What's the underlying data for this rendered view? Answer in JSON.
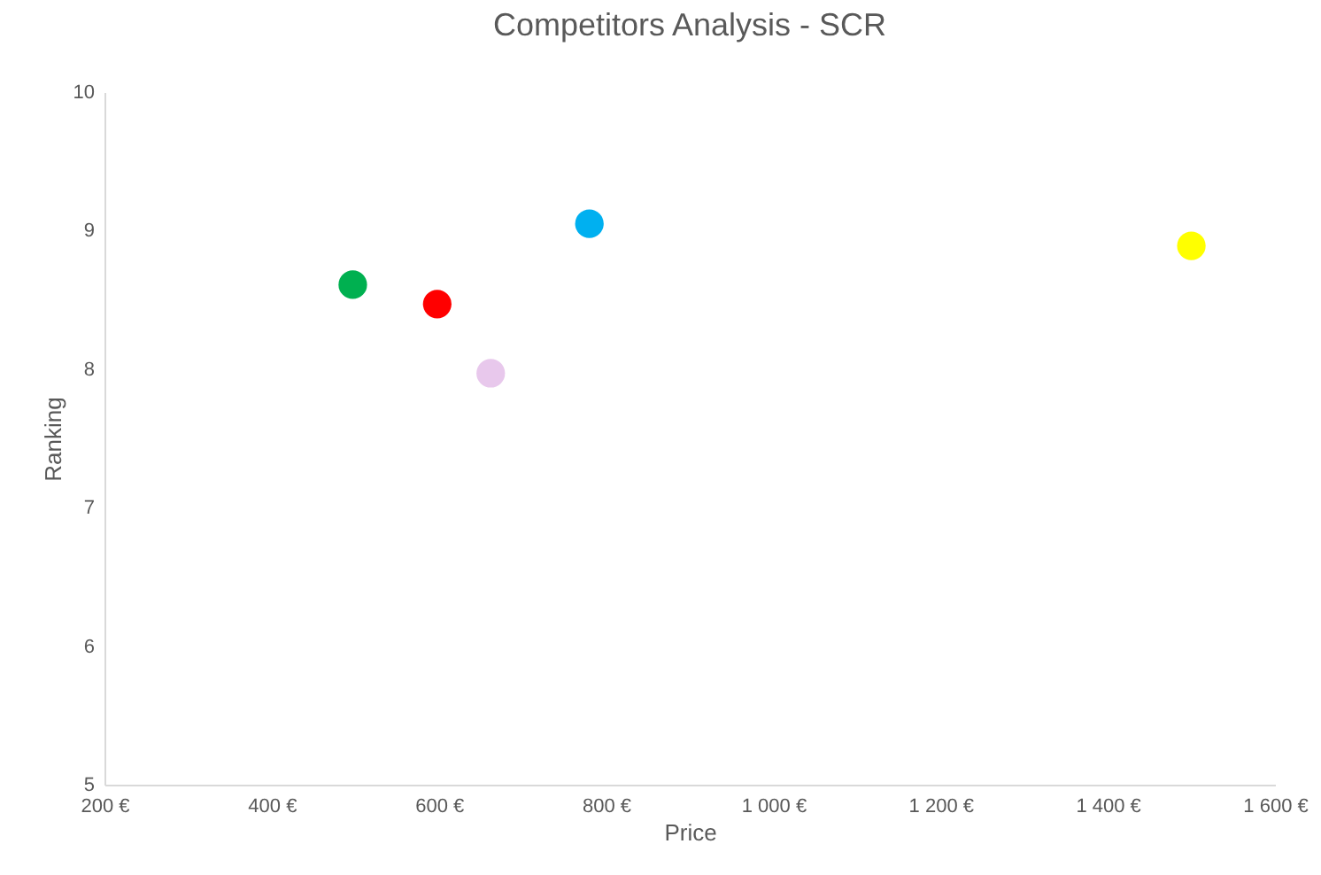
{
  "chart_data": {
    "type": "scatter",
    "title": "Competitors Analysis - SCR",
    "xlabel": "Price",
    "ylabel": "Ranking",
    "x": [
      497,
      598,
      662,
      780,
      1500
    ],
    "values": [
      8.61,
      8.47,
      7.97,
      9.05,
      8.89
    ],
    "colors": [
      "#00b050",
      "#ff0000",
      "#e8c8ec",
      "#00b0f0",
      "#ffff00"
    ],
    "marker": "circle",
    "xlim": [
      200,
      1600
    ],
    "xticks": [
      {
        "value": 200,
        "label": "200 €"
      },
      {
        "value": 400,
        "label": "400 €"
      },
      {
        "value": 600,
        "label": "600 €"
      },
      {
        "value": 800,
        "label": "800 €"
      },
      {
        "value": 1000,
        "label": "1 000 €"
      },
      {
        "value": 1200,
        "label": "1 200 €"
      },
      {
        "value": 1400,
        "label": "1 400 €"
      },
      {
        "value": 1600,
        "label": "1 600 €"
      }
    ],
    "ylim": [
      5,
      10
    ],
    "yticks": [
      5,
      6,
      7,
      8,
      9,
      10
    ],
    "grid": false,
    "legend": false
  }
}
